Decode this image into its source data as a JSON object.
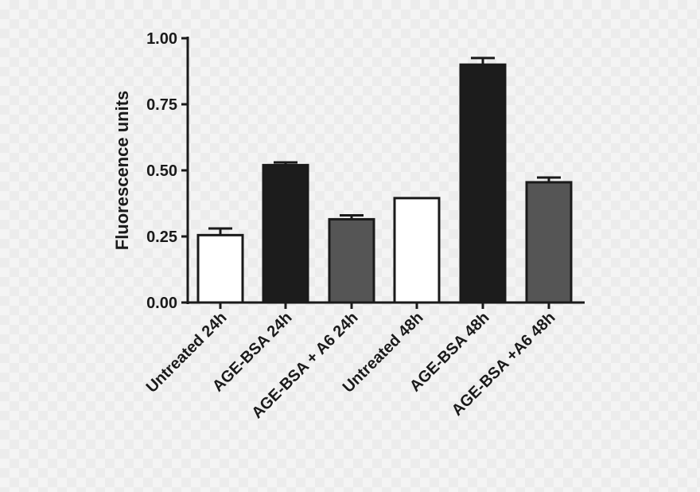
{
  "chart_data": {
    "type": "bar",
    "title": "",
    "xlabel": "",
    "ylabel": "Fluorescence units",
    "ylim": [
      0,
      1.0
    ],
    "yticks": [
      "0.00",
      "0.25",
      "0.50",
      "0.75",
      "1.00"
    ],
    "grid": false,
    "categories": [
      "Untreated 24h",
      "AGE-BSA 24h",
      "AGE-BSA + A6 24h",
      "Untreated 48h",
      "AGE-BSA 48h",
      "AGE-BSA +A6 48h"
    ],
    "values": [
      0.255,
      0.52,
      0.315,
      0.395,
      0.9,
      0.455
    ],
    "errors": [
      0.025,
      0.01,
      0.015,
      0.0,
      0.025,
      0.018
    ],
    "colors": [
      "#ffffff",
      "#1c1c1c",
      "#555555",
      "#ffffff",
      "#1c1c1c",
      "#555555"
    ],
    "axis_color": "#1a1a1a"
  }
}
